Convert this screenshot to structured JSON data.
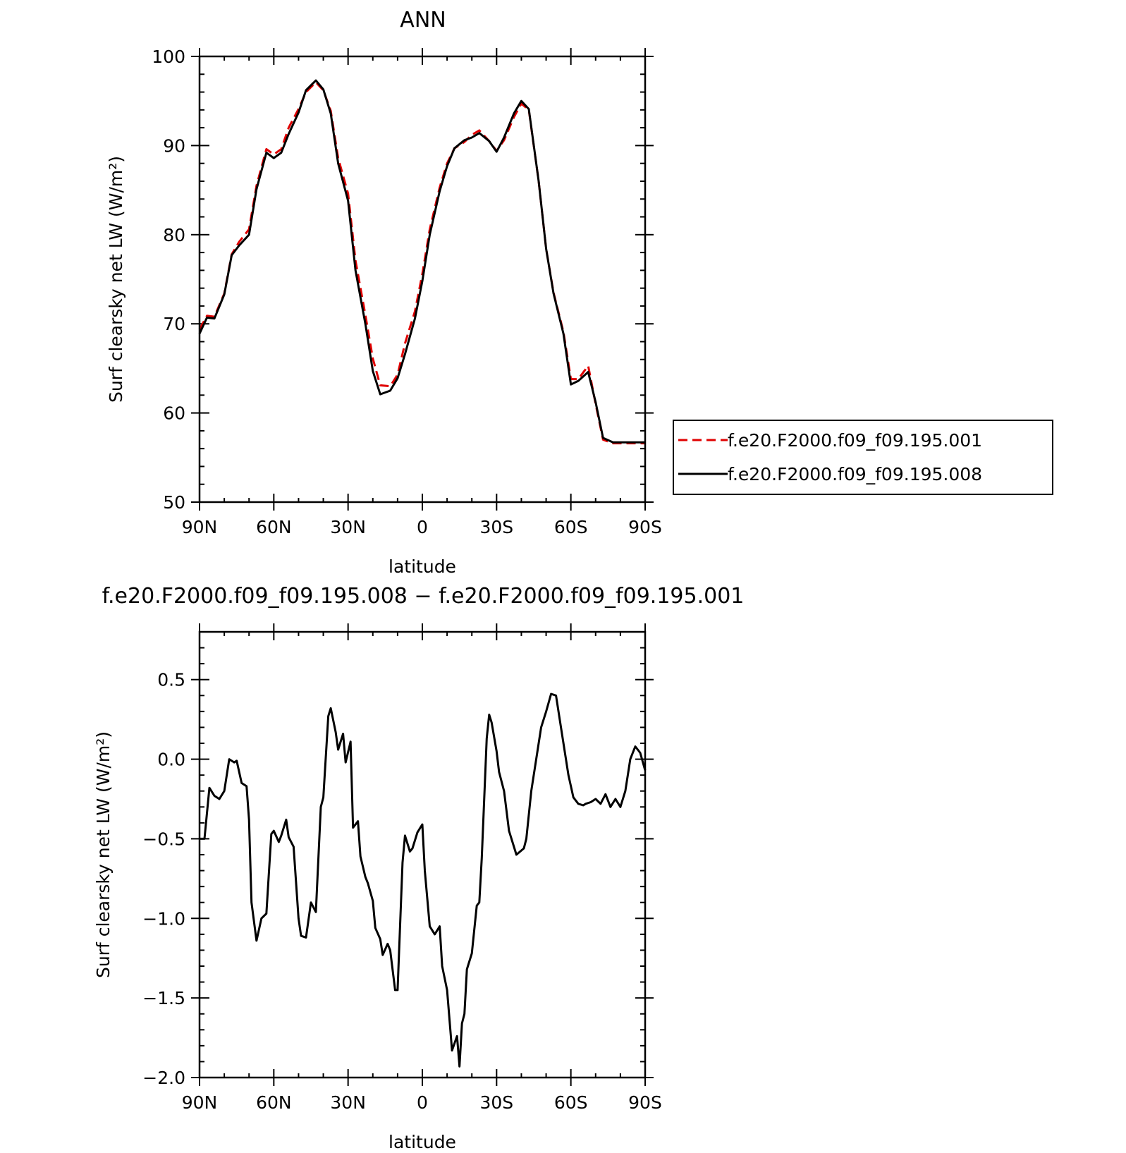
{
  "chart_data": [
    {
      "type": "line",
      "title": "ANN",
      "xlabel": "latitude",
      "ylabel": "Surf clearsky net LW (W/m²)",
      "xlim": [
        90,
        -90
      ],
      "ylim": [
        50,
        100
      ],
      "xticks": [
        "90N",
        "60N",
        "30N",
        "0",
        "30S",
        "60S",
        "90S"
      ],
      "yticks": [
        "50",
        "60",
        "70",
        "80",
        "90",
        "100"
      ],
      "grid": false,
      "legend_position": "right",
      "colors": {
        "case_001": "#e00000",
        "case_008": "#000000"
      },
      "x": [
        90,
        87,
        84,
        80,
        77,
        74,
        70,
        67,
        63,
        60,
        57,
        54,
        50,
        47,
        43,
        40,
        37,
        34,
        30,
        27,
        23,
        20,
        17,
        13,
        10,
        7,
        3,
        0,
        -3,
        -7,
        -10,
        -13,
        -17,
        -20,
        -23,
        -27,
        -30,
        -33,
        -37,
        -40,
        -43,
        -47,
        -50,
        -53,
        -57,
        -60,
        -63,
        -67,
        -70,
        -73,
        -77,
        -80,
        -83,
        -87,
        -90
      ],
      "series": [
        {
          "name": "f.e20.F2000.f09_f09.195.001",
          "style": "dashed",
          "values": [
            69.4,
            70.9,
            70.8,
            73.4,
            77.8,
            79.2,
            80.6,
            85.5,
            89.6,
            89.0,
            89.6,
            92.0,
            94.1,
            96.0,
            97.1,
            96.2,
            93.9,
            88.6,
            84.6,
            77.1,
            71.0,
            66.1,
            63.1,
            63.0,
            64.3,
            67.8,
            71.4,
            75.6,
            80.6,
            85.3,
            88.0,
            89.7,
            90.4,
            91.2,
            91.7,
            90.5,
            89.4,
            90.6,
            93.2,
            94.7,
            94.0,
            86.0,
            78.4,
            73.5,
            69.1,
            63.8,
            63.8,
            65.3,
            61.0,
            57.0,
            56.6,
            56.6,
            56.6,
            56.6,
            56.6
          ]
        },
        {
          "name": "f.e20.F2000.f09_f09.195.008",
          "style": "solid",
          "values": [
            68.9,
            70.7,
            70.6,
            73.3,
            77.7,
            78.8,
            80.0,
            85.1,
            89.2,
            88.6,
            89.2,
            91.3,
            93.7,
            96.2,
            97.3,
            96.3,
            93.6,
            88.0,
            83.8,
            76.0,
            70.0,
            64.7,
            62.1,
            62.5,
            63.9,
            66.6,
            70.6,
            74.8,
            80.0,
            84.9,
            87.7,
            89.7,
            90.6,
            90.9,
            91.4,
            90.5,
            89.3,
            90.9,
            93.6,
            95.0,
            94.1,
            86.0,
            78.4,
            73.4,
            68.9,
            63.2,
            63.6,
            64.6,
            61.2,
            57.2,
            56.7,
            56.7,
            56.7,
            56.7,
            56.7
          ]
        }
      ]
    },
    {
      "type": "line",
      "title": "f.e20.F2000.f09_f09.195.008 − f.e20.F2000.f09_f09.195.001",
      "xlabel": "latitude",
      "ylabel": "Surf clearsky net LW (W/m²)",
      "xlim": [
        90,
        -90
      ],
      "ylim": [
        -2.0,
        0.8
      ],
      "xticks": [
        "90N",
        "60N",
        "30N",
        "0",
        "30S",
        "60S",
        "90S"
      ],
      "yticks": [
        "−2.0",
        "−1.5",
        "−1.0",
        "−0.5",
        "0.0",
        "0.5"
      ],
      "grid": false,
      "colors": {
        "difference": "#000000"
      },
      "x": [
        90,
        88,
        86,
        84,
        82,
        80,
        78,
        76,
        75,
        73,
        71,
        70,
        69,
        67,
        65,
        63,
        61,
        60,
        58,
        57,
        55,
        54,
        52,
        50,
        49,
        47,
        45,
        43,
        41,
        40,
        38,
        37,
        35,
        34,
        32,
        31,
        29,
        28,
        26,
        25,
        23,
        22,
        20,
        19,
        17,
        16,
        14,
        13,
        11,
        10,
        8,
        7,
        5,
        4,
        2,
        0,
        -1,
        -3,
        -5,
        -7,
        -8,
        -10,
        -12,
        -14,
        -15,
        -16,
        -17,
        -18,
        -20,
        -22,
        -23,
        -24,
        -26,
        -27,
        -28,
        -30,
        -31,
        -33,
        -35,
        -38,
        -41,
        -42,
        -44,
        -46,
        -48,
        -50,
        -52,
        -54,
        -56,
        -59,
        -61,
        -63,
        -65,
        -66,
        -68,
        -70,
        -72,
        -74,
        -76,
        -78,
        -80,
        -82,
        -84,
        -86,
        -88,
        -90
      ],
      "series": [
        {
          "name": "",
          "values": [
            -0.5,
            -0.5,
            -0.18,
            -0.23,
            -0.25,
            -0.2,
            0.0,
            -0.02,
            -0.01,
            -0.15,
            -0.17,
            -0.38,
            -0.9,
            -1.14,
            -1.0,
            -0.97,
            -0.47,
            -0.45,
            -0.52,
            -0.48,
            -0.38,
            -0.49,
            -0.55,
            -1.0,
            -1.11,
            -1.12,
            -0.9,
            -0.96,
            -0.3,
            -0.24,
            0.27,
            0.32,
            0.17,
            0.06,
            0.16,
            -0.02,
            0.11,
            -0.43,
            -0.39,
            -0.61,
            -0.74,
            -0.78,
            -0.89,
            -1.06,
            -1.13,
            -1.23,
            -1.16,
            -1.2,
            -1.45,
            -1.45,
            -0.65,
            -0.48,
            -0.58,
            -0.56,
            -0.46,
            -0.41,
            -0.7,
            -1.05,
            -1.1,
            -1.05,
            -1.3,
            -1.45,
            -1.83,
            -1.74,
            -1.93,
            -1.66,
            -1.6,
            -1.32,
            -1.22,
            -0.92,
            -0.9,
            -0.62,
            0.13,
            0.28,
            0.23,
            0.05,
            -0.08,
            -0.2,
            -0.45,
            -0.6,
            -0.56,
            -0.5,
            -0.2,
            0.0,
            0.2,
            0.3,
            0.41,
            0.4,
            0.2,
            -0.1,
            -0.24,
            -0.28,
            -0.29,
            -0.28,
            -0.27,
            -0.25,
            -0.28,
            -0.22,
            -0.3,
            -0.25,
            -0.3,
            -0.2,
            0.0,
            0.08,
            0.04,
            -0.07
          ]
        }
      ]
    }
  ],
  "legend": {
    "items": [
      {
        "label": "f.e20.F2000.f09_f09.195.001"
      },
      {
        "label": "f.e20.F2000.f09_f09.195.008"
      }
    ]
  }
}
